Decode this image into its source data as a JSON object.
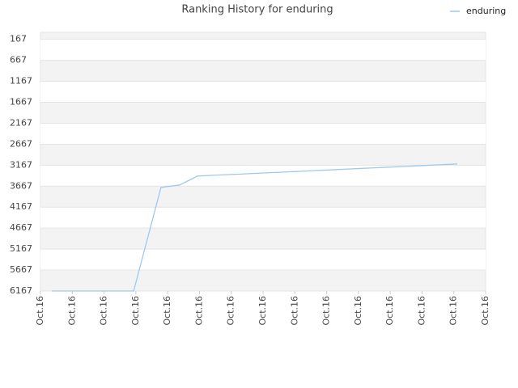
{
  "chart_data": {
    "type": "line",
    "title": "Ranking History for enduring",
    "x": [
      0.36,
      2.93,
      3.79,
      4.38,
      4.94,
      5.4,
      5.98,
      6.49,
      7.0,
      7.51,
      8.02,
      8.53,
      9.04,
      9.55,
      10.05,
      10.56,
      11.07,
      11.58,
      12.09,
      12.6,
      13.11
    ],
    "series": [
      {
        "name": "enduring",
        "color": "#9ec9ef",
        "values": [
          6167,
          6167,
          3697,
          3639,
          3427,
          3408,
          3390,
          3372,
          3354,
          3336,
          3318,
          3300,
          3282,
          3264,
          3246,
          3228,
          3210,
          3192,
          3174,
          3156,
          3138
        ]
      }
    ],
    "xlim": [
      0,
      14
    ],
    "xticks": [
      {
        "value": 0,
        "label": "Oct.16"
      },
      {
        "value": 1,
        "label": "Oct.16"
      },
      {
        "value": 2,
        "label": "Oct.16"
      },
      {
        "value": 3,
        "label": "Oct.16"
      },
      {
        "value": 4,
        "label": "Oct.16"
      },
      {
        "value": 5,
        "label": "Oct.16"
      },
      {
        "value": 6,
        "label": "Oct.16"
      },
      {
        "value": 7,
        "label": "Oct.16"
      },
      {
        "value": 8,
        "label": "Oct.16"
      },
      {
        "value": 9,
        "label": "Oct.16"
      },
      {
        "value": 10,
        "label": "Oct.16"
      },
      {
        "value": 11,
        "label": "Oct.16"
      },
      {
        "value": 12,
        "label": "Oct.16"
      },
      {
        "value": 13,
        "label": "Oct.16"
      },
      {
        "value": 14,
        "label": "Oct.16"
      }
    ],
    "ylim": [
      6167,
      0
    ],
    "yticks": [
      167,
      667,
      1167,
      1667,
      2167,
      2667,
      3167,
      3667,
      4167,
      4667,
      5167,
      5667,
      6167
    ],
    "grid": true,
    "legend": "top-right"
  }
}
